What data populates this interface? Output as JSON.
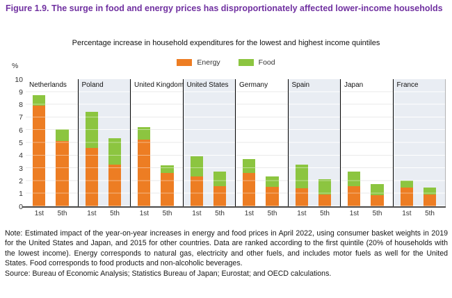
{
  "figure": {
    "title": "Figure 1.9. The surge in food and energy prices has disproportionately affected lower-income households",
    "subtitle": "Percentage increase in household expenditures for the lowest and highest income quintiles"
  },
  "legend": [
    {
      "label": "Energy",
      "key": "energy"
    },
    {
      "label": "Food",
      "key": "food"
    }
  ],
  "colors": {
    "title_purple": "#7030a0",
    "energy_orange": "#ed7d23",
    "food_green": "#8cc540",
    "shaded_panel": "#e9edf3"
  },
  "chart_data": {
    "type": "bar",
    "stacked": true,
    "unit_label": "%",
    "ylim": [
      0,
      10
    ],
    "yticks": [
      0,
      1,
      2,
      3,
      4,
      5,
      6,
      7,
      8,
      9,
      10
    ],
    "grid": true,
    "legend_position": "top-center",
    "quintile_labels": [
      "1st",
      "5th"
    ],
    "series_names": [
      "Energy",
      "Food"
    ],
    "groups": [
      {
        "country": "Netherlands",
        "shaded": false,
        "bars": [
          {
            "label": "1st",
            "energy": 7.9,
            "food": 0.85
          },
          {
            "label": "5th",
            "energy": 5.15,
            "food": 0.9
          }
        ]
      },
      {
        "country": "Poland",
        "shaded": true,
        "bars": [
          {
            "label": "1st",
            "energy": 4.6,
            "food": 2.85
          },
          {
            "label": "5th",
            "energy": 3.3,
            "food": 2.05
          }
        ]
      },
      {
        "country": "United Kingdom",
        "shaded": false,
        "bars": [
          {
            "label": "1st",
            "energy": 5.25,
            "food": 1.0
          },
          {
            "label": "5th",
            "energy": 2.6,
            "food": 0.65
          }
        ]
      },
      {
        "country": "United States",
        "shaded": true,
        "bars": [
          {
            "label": "1st",
            "energy": 2.35,
            "food": 1.6
          },
          {
            "label": "5th",
            "energy": 1.6,
            "food": 1.15
          }
        ]
      },
      {
        "country": "Germany",
        "shaded": false,
        "bars": [
          {
            "label": "1st",
            "energy": 2.6,
            "food": 1.1
          },
          {
            "label": "5th",
            "energy": 1.55,
            "food": 0.8
          }
        ]
      },
      {
        "country": "Spain",
        "shaded": true,
        "bars": [
          {
            "label": "1st",
            "energy": 1.4,
            "food": 1.9
          },
          {
            "label": "5th",
            "energy": 0.95,
            "food": 1.2
          }
        ]
      },
      {
        "country": "Japan",
        "shaded": false,
        "bars": [
          {
            "label": "1st",
            "energy": 1.6,
            "food": 1.15
          },
          {
            "label": "5th",
            "energy": 0.9,
            "food": 0.85
          }
        ]
      },
      {
        "country": "France",
        "shaded": true,
        "bars": [
          {
            "label": "1st",
            "energy": 1.45,
            "food": 0.6
          },
          {
            "label": "5th",
            "energy": 0.95,
            "food": 0.55
          }
        ]
      }
    ]
  },
  "note": "Note: Estimated impact of the year-on-year increases in energy and food prices in April 2022, using consumer basket weights in 2019 for the United States and Japan, and 2015 for other countries. Data are ranked according to the first quintile (20% of households with the lowest income). Energy corresponds to natural gas, electricity and other fuels, and includes motor fuels as well for the United States. Food corresponds to food products and non-alcoholic beverages.",
  "source": "Source: Bureau of Economic Analysis; Statistics Bureau of Japan; Eurostat; and OECD calculations."
}
